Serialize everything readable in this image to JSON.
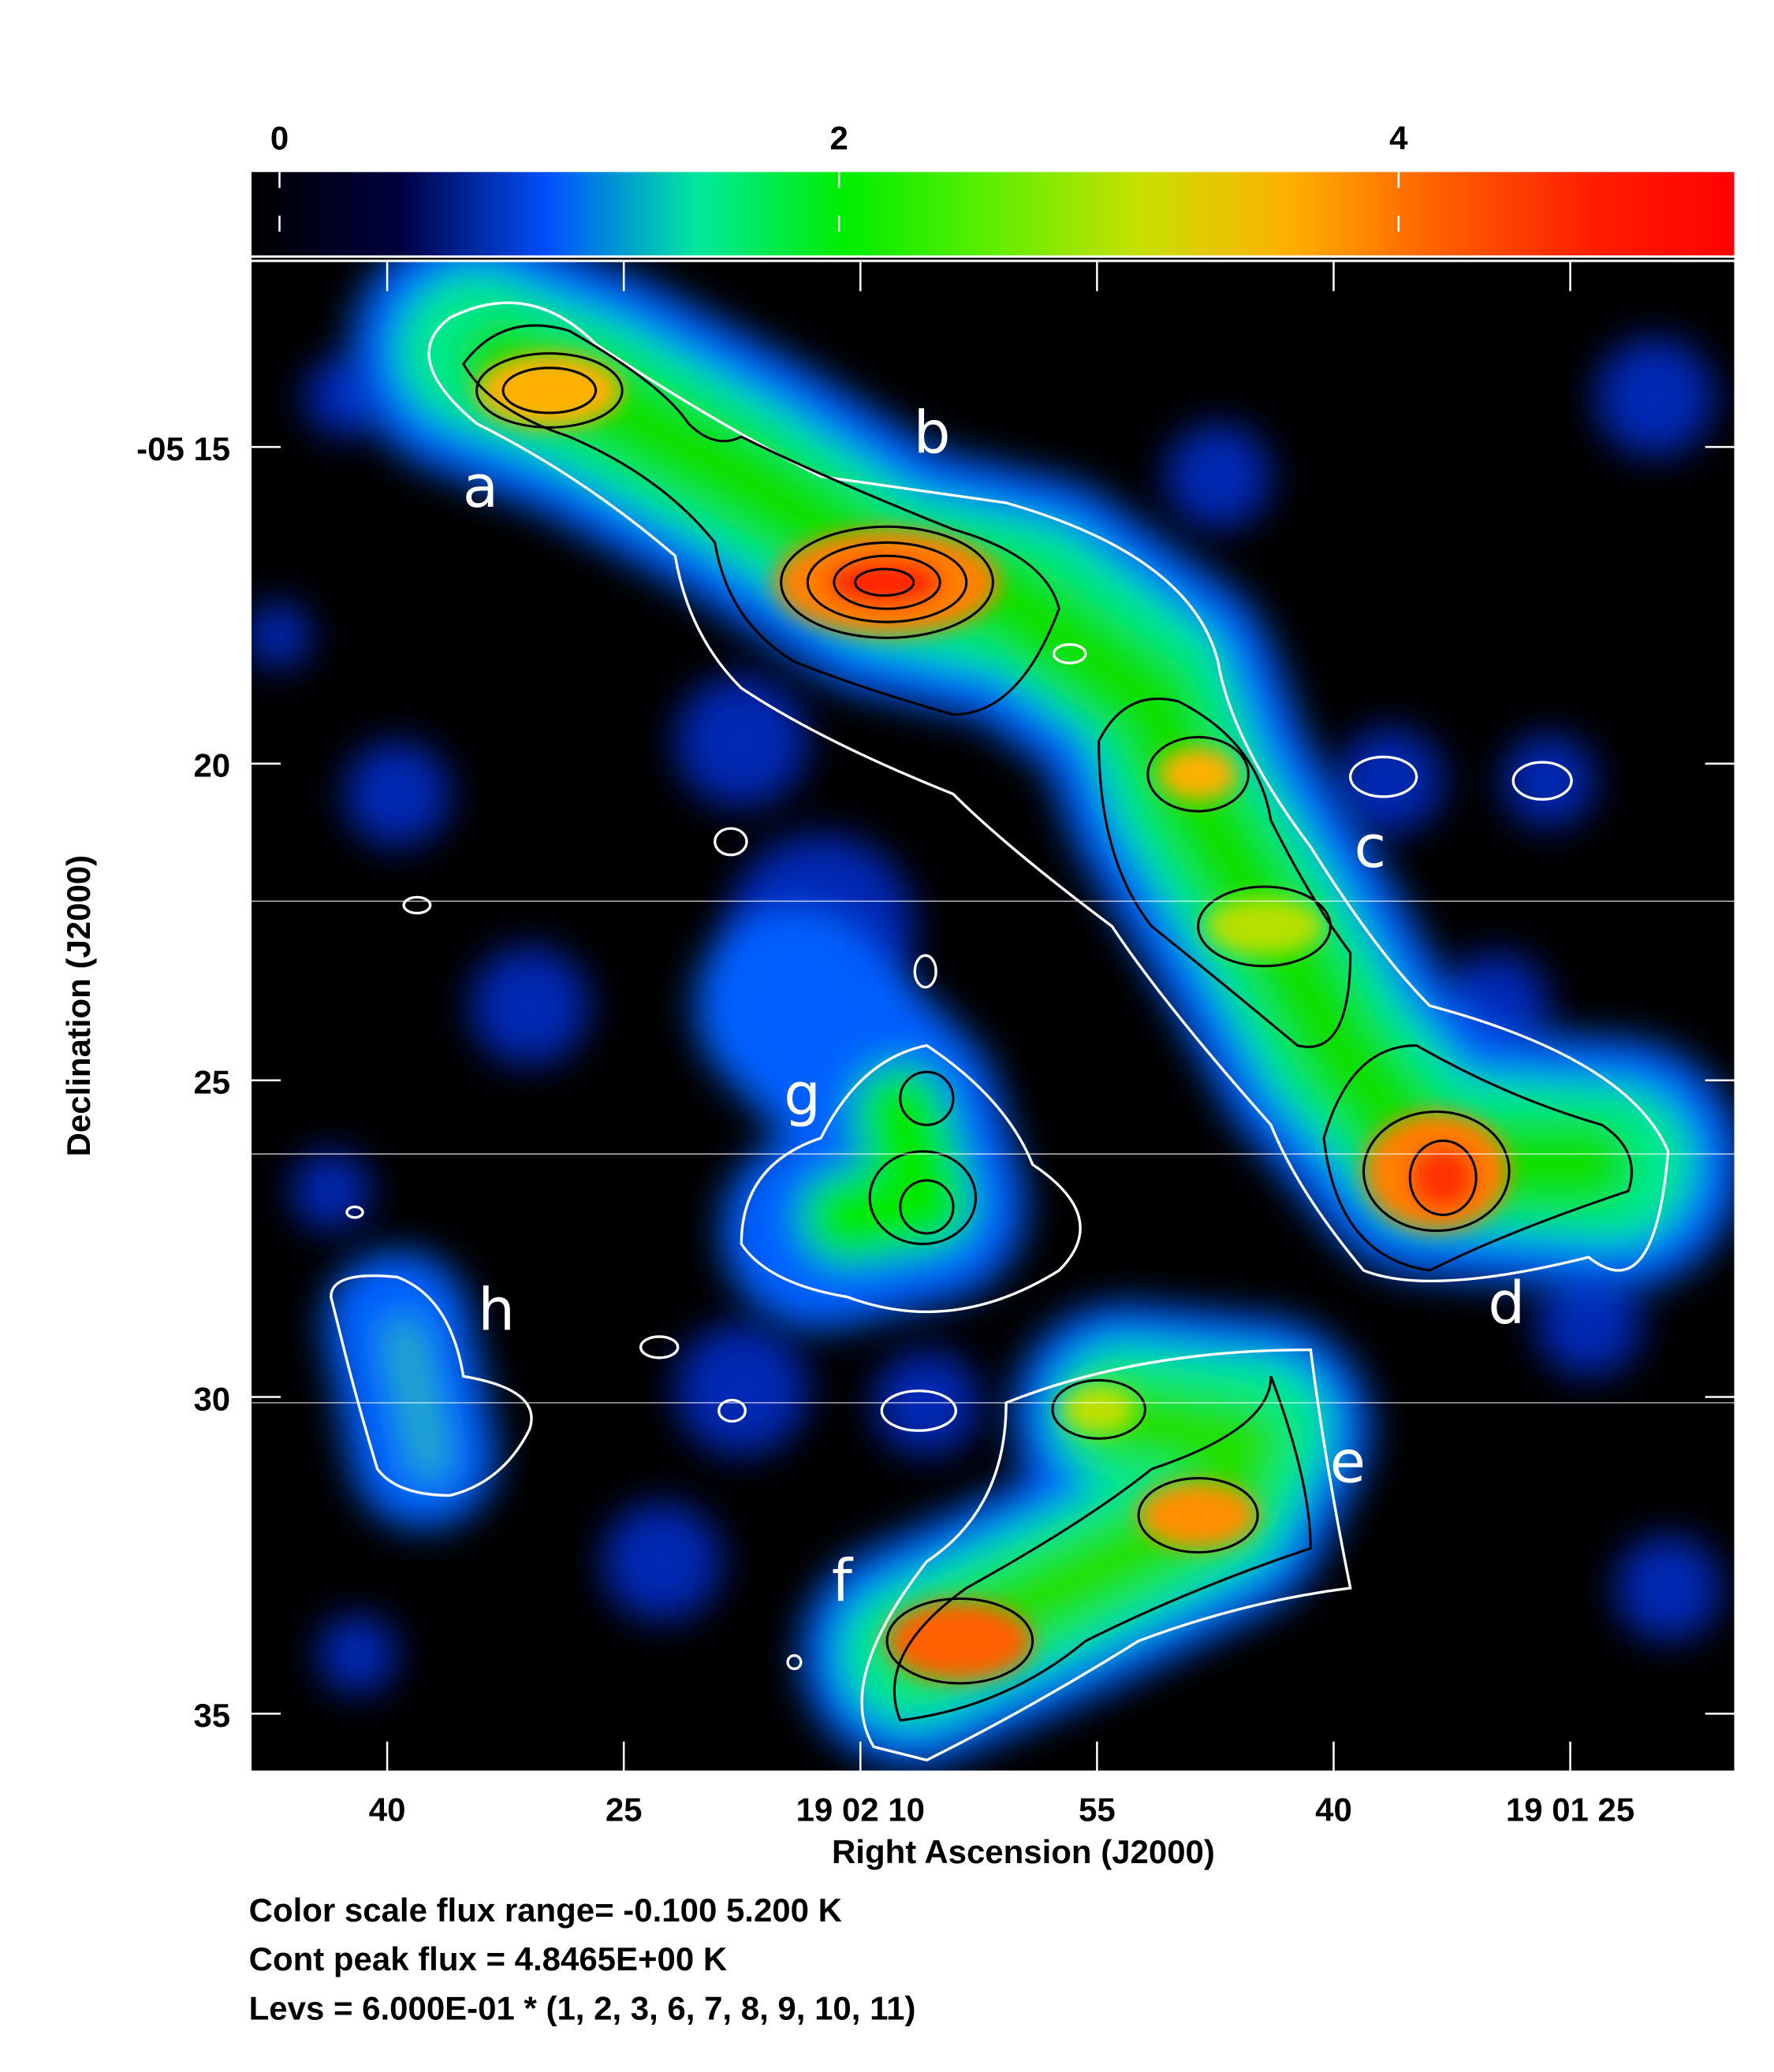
{
  "chart_data": {
    "type": "image",
    "xlabel": "Right Ascension (J2000)",
    "ylabel": "Declination (J2000)",
    "xlim": [
      168.6,
      74.6
    ],
    "xticks": [
      {
        "value": 160,
        "label": "40"
      },
      {
        "value": 145,
        "label": "25"
      },
      {
        "value": 130,
        "label": "19 02 10"
      },
      {
        "value": 115,
        "label": "55"
      },
      {
        "value": 100,
        "label": "40"
      },
      {
        "value": 85,
        "label": "19 01 25"
      }
    ],
    "ylim": [
      12.08,
      35.9
    ],
    "yticks": [
      {
        "value": 15,
        "label": "-05 15"
      },
      20,
      25,
      30,
      35
    ],
    "clim": [
      -0.1,
      5.2
    ],
    "cticks": [
      0,
      2,
      4
    ],
    "colormap": [
      "#000000",
      "#000040",
      "#0050ff",
      "#00e8a0",
      "#00ee00",
      "#60ee00",
      "#c8e000",
      "#ffb000",
      "#ff6000",
      "#ff2000",
      "#ff0000"
    ],
    "sources": [
      "a",
      "b",
      "c",
      "d",
      "e",
      "f",
      "g",
      "h"
    ],
    "notes": [
      "Color scale flux range= -0.100 5.200 K",
      "Cont peak flux = 4.8465E+00 K",
      "Levs = 6.000E-01 * (1, 2, 3, 6, 7, 8, 9, 10, 11)"
    ]
  }
}
